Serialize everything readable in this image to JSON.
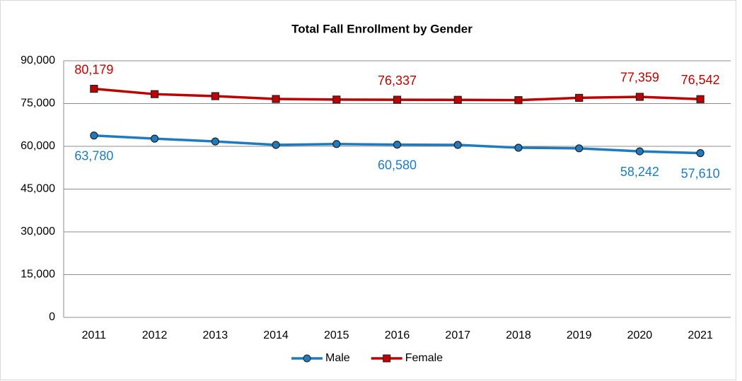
{
  "chart_data": {
    "type": "line",
    "title": "Total Fall Enrollment by Gender",
    "categories": [
      "2011",
      "2012",
      "2013",
      "2014",
      "2015",
      "2016",
      "2017",
      "2018",
      "2019",
      "2020",
      "2021"
    ],
    "series": [
      {
        "name": "Male",
        "color": "#1f7bc0",
        "marker": "circle",
        "values": [
          63780,
          62700,
          61700,
          60500,
          60800,
          60580,
          60500,
          59500,
          59300,
          58242,
          57610
        ],
        "value_labels": [
          "63,780",
          null,
          null,
          null,
          null,
          "60,580",
          null,
          null,
          null,
          "58,242",
          "57,610"
        ]
      },
      {
        "name": "Female",
        "color": "#c00000",
        "marker": "square",
        "values": [
          80179,
          78300,
          77600,
          76600,
          76400,
          76337,
          76300,
          76200,
          77000,
          77359,
          76542
        ],
        "value_labels": [
          "80,179",
          null,
          null,
          null,
          null,
          "76,337",
          null,
          null,
          null,
          "77,359",
          "76,542"
        ]
      }
    ],
    "ylim": [
      0,
      90000
    ],
    "yticks": [
      0,
      {
        "value": 15000,
        "label": "15,000"
      },
      {
        "value": 30000,
        "label": "30,000"
      },
      {
        "value": 45000,
        "label": "45,000"
      },
      {
        "value": 60000,
        "label": "60,000"
      },
      {
        "value": 75000,
        "label": "75,000"
      },
      {
        "value": 90000,
        "label": "90,000"
      }
    ],
    "grid": true,
    "legend": "bottom"
  }
}
